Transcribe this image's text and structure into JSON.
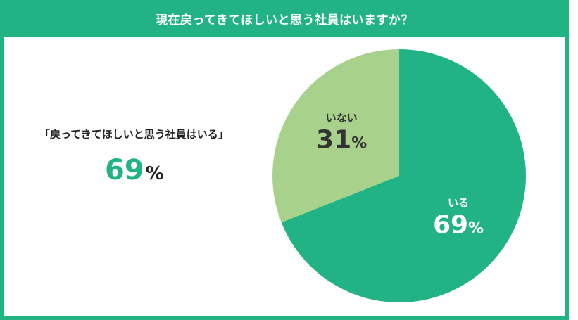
{
  "header": {
    "title": "現在戻ってきてほしいと思う社員はいますか？"
  },
  "summary": {
    "quote": "「戻ってきてほしいと思う社員はいる」",
    "value": "69",
    "unit": "%"
  },
  "chart_data": {
    "type": "pie",
    "title": "現在戻ってきてほしいと思う社員はいますか？",
    "slices": [
      {
        "label": "いる",
        "value": 69,
        "display": "69",
        "unit": "%",
        "color": "#22b384",
        "text_color": "#ffffff"
      },
      {
        "label": "いない",
        "value": 31,
        "display": "31",
        "unit": "%",
        "color": "#a8d18c",
        "text_color": "#333333"
      }
    ],
    "start_angle_deg": 0,
    "direction": "clockwise"
  }
}
